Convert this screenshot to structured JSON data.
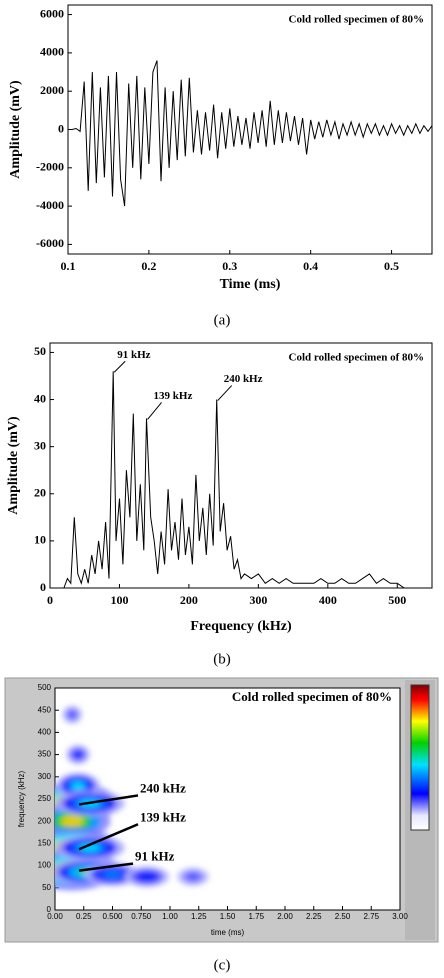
{
  "chart_data": [
    {
      "type": "line",
      "title": "Cold rolled specimen of 80%",
      "xlabel": "Time (ms)",
      "ylabel": "Amplitude (mV)",
      "caption": "(a)",
      "color": "#000000",
      "xlim": [
        0.1,
        0.55
      ],
      "xticks": [
        0.1,
        0.2,
        0.3,
        0.4,
        0.5
      ],
      "ylim": [
        -6500,
        6500
      ],
      "yticks": [
        -6000,
        -4000,
        -2000,
        0,
        2000,
        4000,
        6000
      ],
      "x": [
        0.1,
        0.105,
        0.11,
        0.115,
        0.12,
        0.125,
        0.13,
        0.135,
        0.14,
        0.145,
        0.15,
        0.155,
        0.16,
        0.165,
        0.17,
        0.175,
        0.18,
        0.185,
        0.19,
        0.195,
        0.2,
        0.205,
        0.21,
        0.215,
        0.22,
        0.225,
        0.23,
        0.235,
        0.24,
        0.245,
        0.25,
        0.255,
        0.26,
        0.265,
        0.27,
        0.275,
        0.28,
        0.285,
        0.29,
        0.295,
        0.3,
        0.305,
        0.31,
        0.315,
        0.32,
        0.325,
        0.33,
        0.335,
        0.34,
        0.345,
        0.35,
        0.355,
        0.36,
        0.365,
        0.37,
        0.375,
        0.38,
        0.385,
        0.39,
        0.395,
        0.4,
        0.405,
        0.41,
        0.415,
        0.42,
        0.425,
        0.43,
        0.435,
        0.44,
        0.445,
        0.45,
        0.455,
        0.46,
        0.465,
        0.47,
        0.475,
        0.48,
        0.485,
        0.49,
        0.495,
        0.5,
        0.505,
        0.51,
        0.515,
        0.52,
        0.525,
        0.53,
        0.535,
        0.54,
        0.545,
        0.55
      ],
      "values": [
        0,
        0,
        50,
        -100,
        2500,
        -3200,
        3000,
        -2800,
        2200,
        -2500,
        2800,
        -3500,
        3000,
        -2600,
        -4000,
        2400,
        -2000,
        2800,
        -2600,
        2200,
        -1800,
        3000,
        3600,
        -2700,
        2200,
        -2000,
        2000,
        -1600,
        2600,
        -1400,
        2700,
        -1200,
        1000,
        -1300,
        900,
        -1100,
        1300,
        -1500,
        900,
        -1000,
        1100,
        -900,
        700,
        -800,
        600,
        -1000,
        900,
        -700,
        1000,
        -900,
        1500,
        -800,
        1000,
        -700,
        900,
        -600,
        700,
        -800,
        600,
        -1300,
        500,
        -500,
        400,
        -400,
        500,
        -300,
        400,
        -500,
        300,
        -300,
        400,
        -300,
        300,
        -400,
        300,
        -200,
        300,
        -300,
        200,
        -300,
        300,
        -200,
        200,
        -300,
        200,
        -200,
        300,
        -200,
        200,
        -100,
        200
      ]
    },
    {
      "type": "line",
      "title": "Cold rolled specimen of 80%",
      "xlabel": "Frequency (kHz)",
      "ylabel": "Amplitude (mV)",
      "caption": "(b)",
      "color": "#000000",
      "xlim": [
        0,
        550
      ],
      "xticks": [
        0,
        100,
        200,
        300,
        400,
        500
      ],
      "ylim": [
        0,
        52
      ],
      "yticks": [
        0,
        10,
        20,
        30,
        40,
        50
      ],
      "x": [
        20,
        25,
        30,
        35,
        40,
        45,
        50,
        55,
        60,
        65,
        70,
        75,
        80,
        85,
        91,
        95,
        100,
        105,
        110,
        115,
        120,
        125,
        130,
        135,
        139,
        145,
        150,
        155,
        160,
        165,
        170,
        175,
        180,
        185,
        190,
        195,
        200,
        205,
        210,
        215,
        220,
        225,
        230,
        235,
        240,
        245,
        250,
        255,
        260,
        265,
        270,
        275,
        280,
        290,
        300,
        310,
        320,
        330,
        340,
        350,
        360,
        370,
        380,
        390,
        400,
        410,
        420,
        430,
        440,
        450,
        460,
        470,
        480,
        490,
        500,
        510
      ],
      "values": [
        0,
        2,
        1,
        15,
        3,
        1,
        4,
        1,
        7,
        3,
        10,
        4,
        14,
        2,
        46,
        10,
        19,
        5,
        25,
        15,
        37,
        10,
        22,
        8,
        36,
        15,
        10,
        3,
        12,
        5,
        21,
        8,
        14,
        6,
        19,
        7,
        13,
        5,
        24,
        10,
        17,
        7,
        20,
        9,
        40,
        12,
        18,
        8,
        11,
        4,
        6,
        2,
        3,
        2,
        3,
        1,
        2,
        1,
        2,
        1,
        1,
        1,
        1,
        2,
        1,
        1,
        2,
        1,
        1,
        2,
        3,
        1,
        2,
        1,
        1,
        0
      ],
      "annotations": [
        {
          "text": "91 kHz",
          "x": 91,
          "y": 46
        },
        {
          "text": "139 kHz",
          "x": 139,
          "y": 36
        },
        {
          "text": "240 kHz",
          "x": 240,
          "y": 40
        }
      ]
    },
    {
      "type": "heatmap",
      "title": "Cold rolled specimen of 80%",
      "xlabel": "time (ms)",
      "ylabel": "frequency (kHz)",
      "caption": "(c)",
      "xlim": [
        0,
        3
      ],
      "xticks": [
        {
          "value": 0,
          "label": "0.00"
        },
        {
          "value": 0.25,
          "label": "0.25"
        },
        {
          "value": 0.5,
          "label": "0.500"
        },
        {
          "value": 0.75,
          "label": "0.750"
        },
        {
          "value": 1,
          "label": "1.00"
        },
        {
          "value": 1.25,
          "label": "1.25"
        },
        {
          "value": 1.5,
          "label": "1.50"
        },
        {
          "value": 1.75,
          "label": "1.75"
        },
        {
          "value": 2,
          "label": "2.00"
        },
        {
          "value": 2.25,
          "label": "2.25"
        },
        {
          "value": 2.5,
          "label": "2.50"
        },
        {
          "value": 2.75,
          "label": "2.75"
        },
        {
          "value": 3,
          "label": "3.00"
        }
      ],
      "ylim": [
        0,
        500
      ],
      "yticks": [
        0,
        50,
        100,
        150,
        200,
        250,
        300,
        350,
        400,
        450,
        500
      ],
      "x": [
        0.15,
        0.15,
        0.15,
        0.15,
        0.3,
        0.5,
        0.8,
        0.2,
        0.2,
        0.15,
        1.2,
        0.3,
        0.3
      ],
      "y": [
        240,
        200,
        140,
        90,
        85,
        80,
        75,
        280,
        350,
        440,
        75,
        140,
        240
      ],
      "values": [
        1,
        0.8,
        1,
        1,
        0.5,
        0.3,
        0.2,
        0.4,
        0.15,
        0.1,
        0.1,
        0.4,
        0.4
      ],
      "annotations": [
        {
          "text": "240 kHz",
          "x": 0.2,
          "y": 240
        },
        {
          "text": "139 kHz",
          "x": 0.2,
          "y": 139
        },
        {
          "text": "91 kHz",
          "x": 0.2,
          "y": 91
        }
      ]
    }
  ]
}
